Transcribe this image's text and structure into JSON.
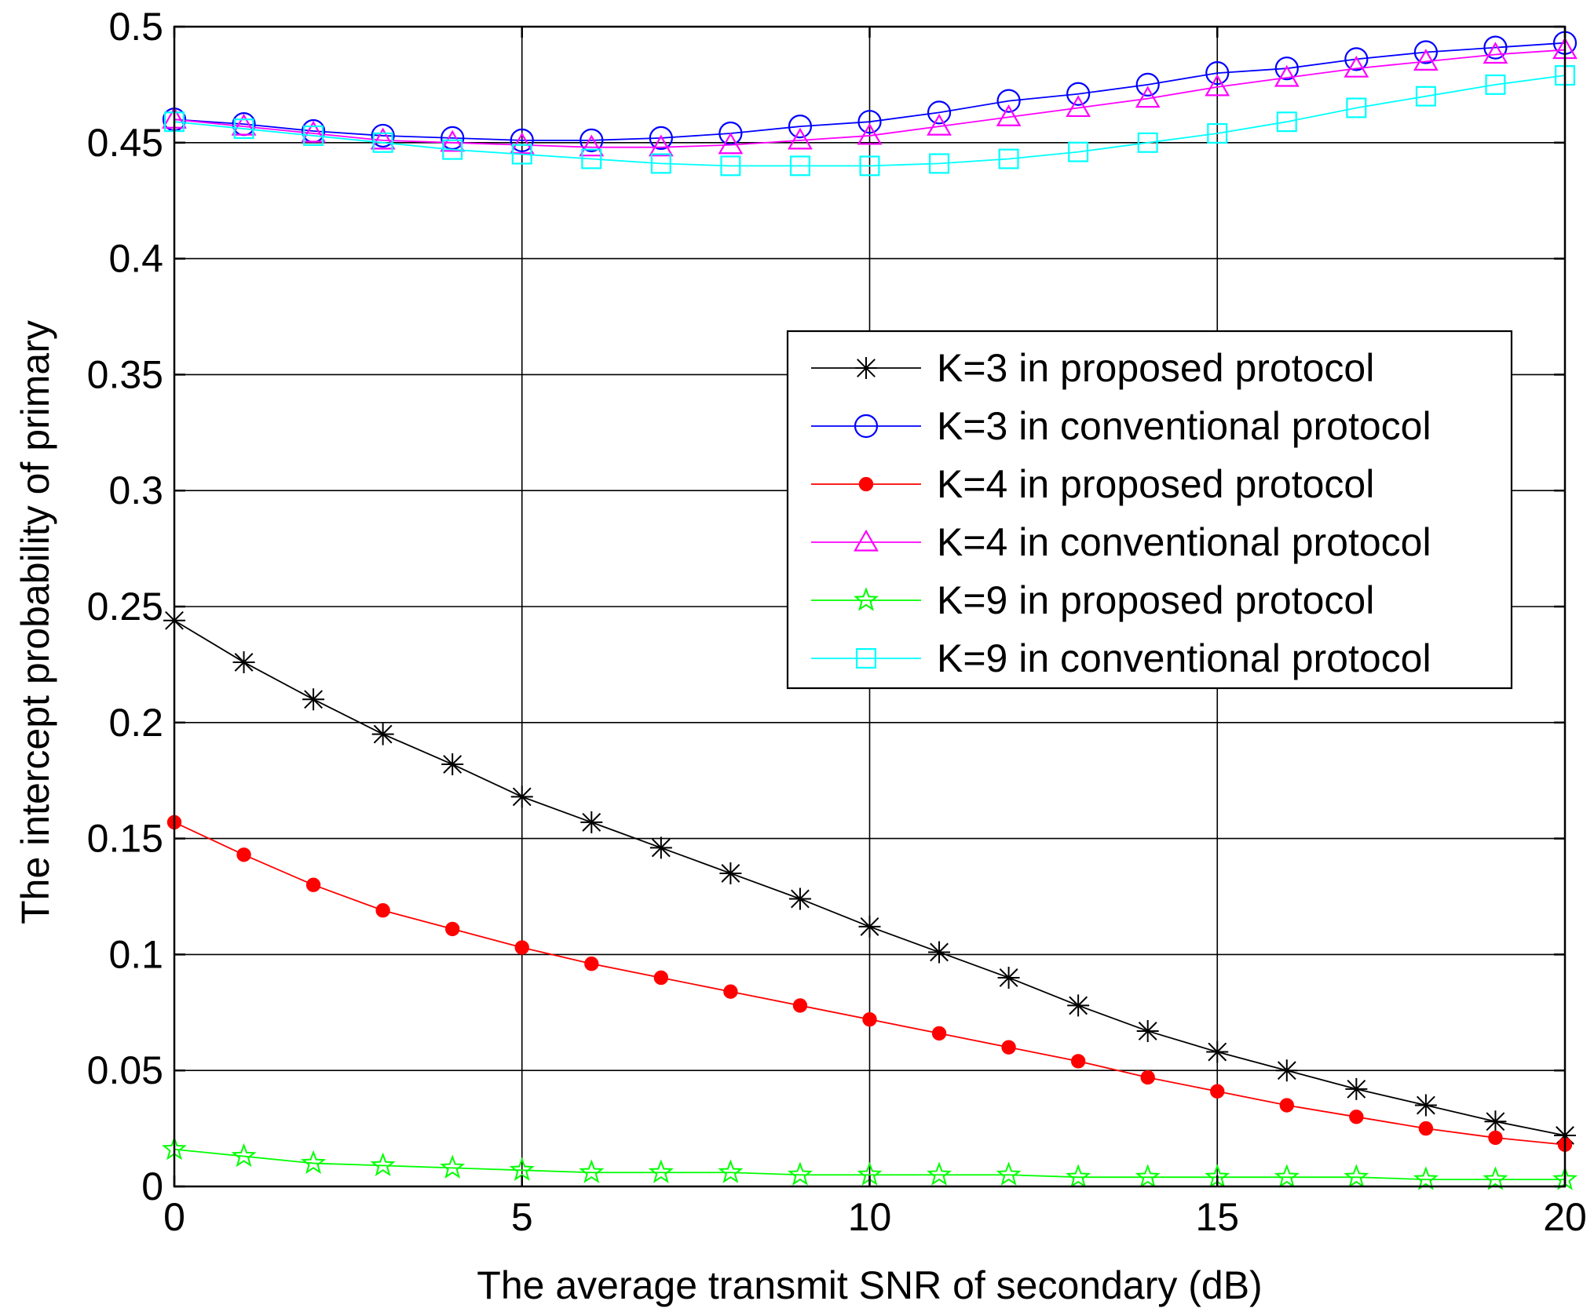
{
  "chart_data": {
    "type": "line",
    "title": "",
    "xlabel": "The average transmit SNR of secondary (dB)",
    "ylabel": "The intercept probability of primary",
    "xlim": [
      0,
      20
    ],
    "ylim": [
      0,
      0.5
    ],
    "xticks": [
      0,
      5,
      10,
      15,
      20
    ],
    "xtick_labels": [
      "0",
      "5",
      "10",
      "15",
      "20"
    ],
    "yticks": [
      0,
      0.05,
      0.1,
      0.15,
      0.2,
      0.25,
      0.3,
      0.35,
      0.4,
      0.45,
      0.5
    ],
    "ytick_labels": [
      "0",
      "0.05",
      "0.1",
      "0.15",
      "0.2",
      "0.25",
      "0.3",
      "0.35",
      "0.4",
      "0.45",
      "0.5"
    ],
    "grid": true,
    "legend_position": "center-right",
    "x": [
      0,
      1,
      2,
      3,
      4,
      5,
      6,
      7,
      8,
      9,
      10,
      11,
      12,
      13,
      14,
      15,
      16,
      17,
      18,
      19,
      20
    ],
    "series": [
      {
        "name": "K=3 in proposed protocol",
        "color": "#000000",
        "marker": "asterisk",
        "values": [
          0.244,
          0.226,
          0.21,
          0.195,
          0.182,
          0.168,
          0.157,
          0.146,
          0.135,
          0.124,
          0.112,
          0.101,
          0.09,
          0.078,
          0.067,
          0.058,
          0.05,
          0.042,
          0.035,
          0.028,
          0.022
        ]
      },
      {
        "name": "K=3 in conventional protocol",
        "color": "#0000ff",
        "marker": "circle",
        "values": [
          0.46,
          0.458,
          0.455,
          0.453,
          0.452,
          0.451,
          0.451,
          0.452,
          0.454,
          0.457,
          0.459,
          0.463,
          0.468,
          0.471,
          0.475,
          0.48,
          0.482,
          0.486,
          0.489,
          0.491,
          0.493
        ]
      },
      {
        "name": "K=4 in proposed protocol",
        "color": "#ff0000",
        "marker": "dot",
        "values": [
          0.157,
          0.143,
          0.13,
          0.119,
          0.111,
          0.103,
          0.096,
          0.09,
          0.084,
          0.078,
          0.072,
          0.066,
          0.06,
          0.054,
          0.047,
          0.041,
          0.035,
          0.03,
          0.025,
          0.021,
          0.018
        ]
      },
      {
        "name": "K=4 in conventional protocol",
        "color": "#ff00ff",
        "marker": "triangle",
        "values": [
          0.46,
          0.457,
          0.454,
          0.451,
          0.45,
          0.449,
          0.448,
          0.448,
          0.449,
          0.451,
          0.453,
          0.457,
          0.461,
          0.465,
          0.469,
          0.474,
          0.478,
          0.482,
          0.485,
          0.488,
          0.49
        ]
      },
      {
        "name": "K=9 in proposed protocol",
        "color": "#00ff00",
        "marker": "star",
        "values": [
          0.016,
          0.013,
          0.01,
          0.009,
          0.008,
          0.007,
          0.006,
          0.006,
          0.006,
          0.005,
          0.005,
          0.005,
          0.005,
          0.004,
          0.004,
          0.004,
          0.004,
          0.004,
          0.003,
          0.003,
          0.003
        ]
      },
      {
        "name": "K=9 in conventional protocol",
        "color": "#00ffff",
        "marker": "square",
        "values": [
          0.459,
          0.456,
          0.453,
          0.45,
          0.447,
          0.445,
          0.443,
          0.441,
          0.44,
          0.44,
          0.44,
          0.441,
          0.443,
          0.446,
          0.45,
          0.454,
          0.459,
          0.465,
          0.47,
          0.475,
          0.479
        ]
      }
    ]
  }
}
